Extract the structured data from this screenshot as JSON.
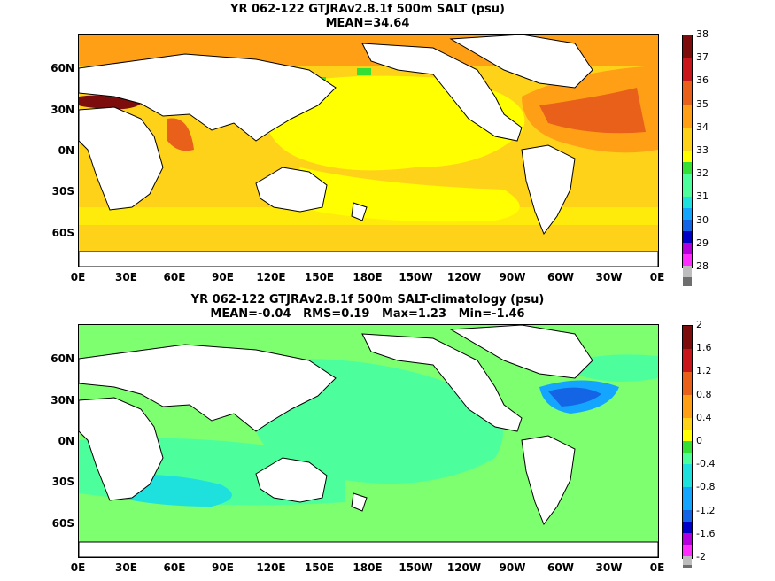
{
  "panel_top": {
    "title_line1": "YR 062-122 GTJRAv2.8.1f 500m SALT (psu)",
    "title_line2": "MEAN=34.64",
    "colorbar_labels": [
      "38",
      "37",
      "36",
      "35",
      "34",
      "33",
      "32",
      "31",
      "30",
      "29",
      "28"
    ],
    "colorbar_colors": [
      "#7d0d0d",
      "#c8161b",
      "#e8601a",
      "#ff9f16",
      "#ffd21a",
      "#ffff00",
      "#33e033",
      "#4dff9c",
      "#1ee0dc",
      "#14a6ff",
      "#1464e6",
      "#1432d2",
      "#0000c8",
      "#b400dc",
      "#ff2dff",
      "#bdbdbd",
      "#6e6e6e"
    ]
  },
  "panel_bottom": {
    "title_line1": "YR 062-122 GTJRAv2.8.1f 500m SALT-climatology (psu)",
    "title_line2": "MEAN=-0.04   RMS=0.19   Max=1.23   Min=-1.46",
    "colorbar_labels": [
      "2",
      "1.6",
      "1.2",
      "0.8",
      "0.4",
      "0",
      "-0.4",
      "-0.8",
      "-1.2",
      "-1.6",
      "-2"
    ],
    "colorbar_colors": [
      "#7d0d0d",
      "#c8161b",
      "#e8601a",
      "#ff9f16",
      "#ffd21a",
      "#ffff00",
      "#33e033",
      "#4dff9c",
      "#1ee0dc",
      "#14a6ff",
      "#1464e6",
      "#1432d2",
      "#0000c8",
      "#b400dc",
      "#ff2dff",
      "#bdbdbd",
      "#6e6e6e"
    ]
  },
  "axes": {
    "x_labels": [
      "0E",
      "30E",
      "60E",
      "90E",
      "120E",
      "150E",
      "180E",
      "150W",
      "120W",
      "90W",
      "60W",
      "30W",
      "0E"
    ],
    "y_labels": [
      "60N",
      "30N",
      "0N",
      "30S",
      "60S"
    ]
  },
  "colors": {
    "land": "#ffffff",
    "coast": "#000000",
    "top_ocean_base": "#ffd21a",
    "top_ocean_high": "#ffff00",
    "top_atlantic": "#ff9f16",
    "top_atlantic_core": "#e8601a",
    "top_med": "#7d0d0d",
    "bottom_ocean_base": "#4dff9c",
    "bottom_ocean_light": "#7dff70",
    "bottom_cyan": "#1ee0dc",
    "bottom_blue": "#1464e6"
  }
}
